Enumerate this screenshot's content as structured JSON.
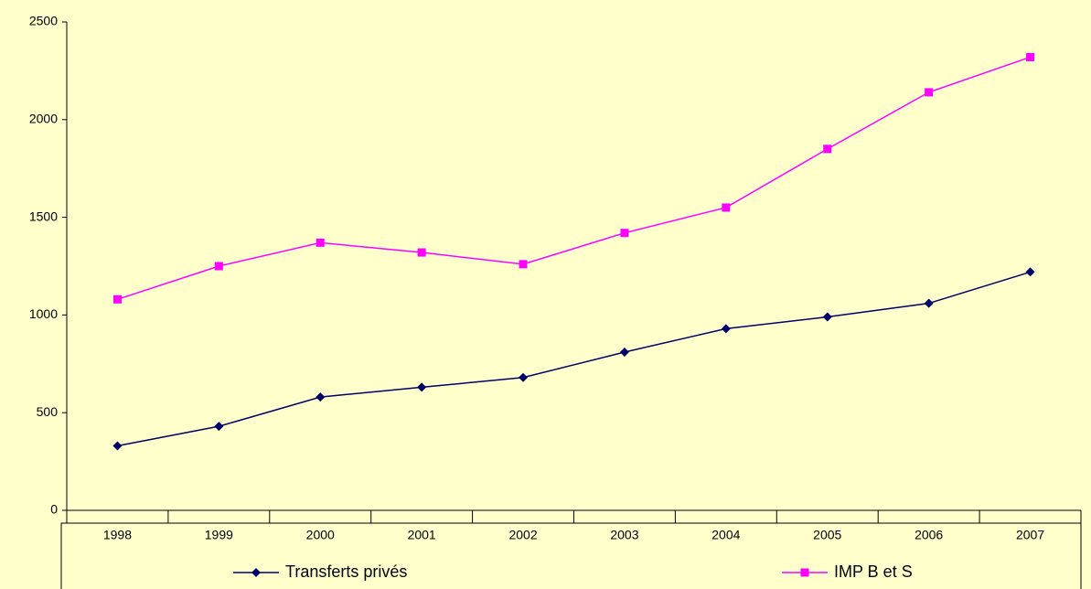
{
  "chart_data": {
    "type": "line",
    "categories": [
      "1998",
      "1999",
      "2000",
      "2001",
      "2002",
      "2003",
      "2004",
      "2005",
      "2006",
      "2007"
    ],
    "series": [
      {
        "name": "Transferts privés",
        "color": "#000066",
        "marker": "diamond",
        "values": [
          330,
          430,
          580,
          630,
          680,
          810,
          930,
          990,
          1060,
          1220
        ]
      },
      {
        "name": "IMP B et S",
        "color": "#ff00ff",
        "marker": "square",
        "values": [
          1080,
          1250,
          1370,
          1320,
          1260,
          1420,
          1550,
          1850,
          2140,
          2320
        ]
      }
    ],
    "ylim": [
      0,
      2500
    ],
    "yticks": [
      0,
      500,
      1000,
      1500,
      2000,
      2500
    ],
    "grid": false,
    "legend": "bottom"
  }
}
